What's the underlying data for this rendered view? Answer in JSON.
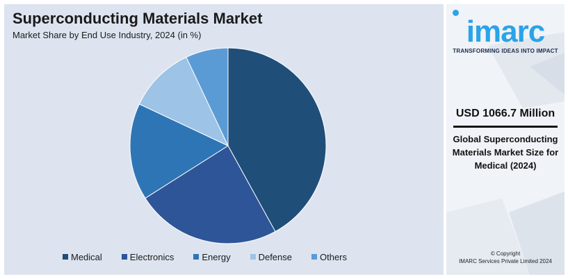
{
  "header": {
    "title": "Superconducting Materials Market",
    "subtitle": "Market Share by End Use Industry, 2024 (in %)"
  },
  "chart_data": {
    "type": "pie",
    "title": "Superconducting Materials Market",
    "subtitle": "Market Share by End Use Industry, 2024 (in %)",
    "categories": [
      "Medical",
      "Electronics",
      "Energy",
      "Defense",
      "Others"
    ],
    "values": [
      42,
      24,
      16,
      11,
      7
    ],
    "colors": [
      "#1f4e79",
      "#2e5597",
      "#2e75b6",
      "#9dc3e6",
      "#5b9bd5"
    ],
    "legend_position": "bottom"
  },
  "brand": {
    "logo_text": "imarc",
    "tagline": "TRANSFORMING IDEAS INTO IMPACT",
    "accent_color": "#2aa3e8"
  },
  "side": {
    "market_size": "USD 1066.7 Million",
    "description": "Global Superconducting Materials Market Size for Medical (2024)",
    "copyright_line1": "© Copyright",
    "copyright_line2": "IMARC Services Private Limited 2024"
  }
}
